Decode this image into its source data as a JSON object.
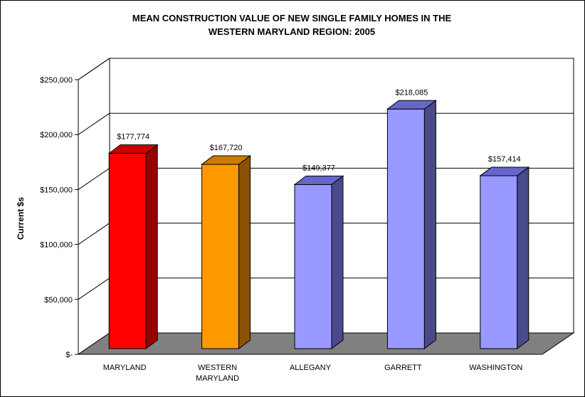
{
  "chart_data": {
    "type": "bar",
    "title_lines": [
      "MEAN CONSTRUCTION VALUE OF NEW SINGLE FAMILY HOMES IN THE",
      "WESTERN MARYLAND REGION:  2005"
    ],
    "ylabel": "Current $s",
    "xlabel": "",
    "categories": [
      [
        "MARYLAND"
      ],
      [
        "WESTERN",
        "MARYLAND"
      ],
      [
        "ALLEGANY"
      ],
      [
        "GARRETT"
      ],
      [
        "WASHINGTON"
      ]
    ],
    "values": [
      177774,
      167720,
      149377,
      218085,
      157414
    ],
    "data_labels": [
      "$177,774",
      "$167,720",
      "$149,377",
      "$218,085",
      "$157,414"
    ],
    "bar_colors": [
      {
        "front": "#ff0000",
        "side": "#990000",
        "top": "#cc0000"
      },
      {
        "front": "#ff9900",
        "side": "#8a5200",
        "top": "#cc7a00"
      },
      {
        "front": "#9999ff",
        "side": "#4a4a8a",
        "top": "#6666cc"
      },
      {
        "front": "#9999ff",
        "side": "#4a4a8a",
        "top": "#6666cc"
      },
      {
        "front": "#9999ff",
        "side": "#4a4a8a",
        "top": "#6666cc"
      }
    ],
    "ylim": [
      0,
      250000
    ],
    "yticks": [
      {
        "value": 0,
        "label": "$-"
      },
      {
        "value": 50000,
        "label": "$50,000"
      },
      {
        "value": 100000,
        "label": "$100,000"
      },
      {
        "value": 150000,
        "label": "$150,000"
      },
      {
        "value": 200000,
        "label": "$200,000"
      },
      {
        "value": 250000,
        "label": "$250,000"
      }
    ],
    "grid": true,
    "floor_color": "#808080",
    "three_d": true
  }
}
